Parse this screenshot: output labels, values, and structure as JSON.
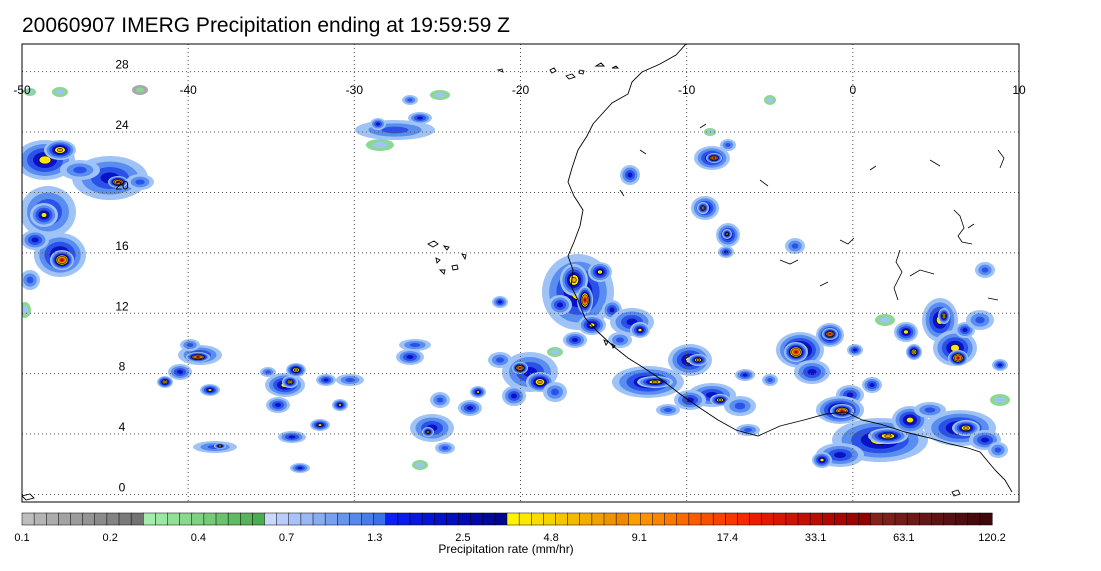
{
  "title": "20060907 IMERG Precipitation ending at 19:59:59 Z",
  "map": {
    "lon_ticks": [
      "-50",
      "-40",
      "-30",
      "-20",
      "-10",
      "0",
      "10"
    ],
    "lat_ticks": [
      "28",
      "24",
      "20",
      "16",
      "12",
      "8",
      "4",
      "0"
    ],
    "lon_range": [
      -50,
      10
    ],
    "lat_range": [
      -0.5,
      29
    ],
    "grid": "dotted",
    "coastline_color": "#000000"
  },
  "colorbar": {
    "title": "Precipitation rate (mm/hr)",
    "tick_labels": [
      "0.1",
      "0.2",
      "0.4",
      "0.7",
      "1.3",
      "2.5",
      "4.8",
      "9.1",
      "17.4",
      "33.1",
      "63.1",
      "120.2"
    ],
    "colors": [
      "#bdbdbd",
      "#b4b4b4",
      "#acacac",
      "#a3a3a3",
      "#9b9b9b",
      "#939393",
      "#8b8b8b",
      "#838383",
      "#7a7a7a",
      "#727272",
      "#a6ecad",
      "#9ce6a3",
      "#92df98",
      "#88d88e",
      "#7ed184",
      "#74ca79",
      "#6ac26f",
      "#60bb65",
      "#56b45a",
      "#4cad50",
      "#c9d8fb",
      "#b9cdfa",
      "#a9c2f8",
      "#99b6f5",
      "#89abf2",
      "#799ff0",
      "#6894ed",
      "#5888ea",
      "#487de7",
      "#3872e4",
      "#0d1ef2",
      "#0a1ae8",
      "#0817dd",
      "#0614d2",
      "#0411c7",
      "#030ebc",
      "#020bb1",
      "#0109a6",
      "#00079b",
      "#000590",
      "#fff400",
      "#fde800",
      "#fbdc00",
      "#f9d000",
      "#f7c400",
      "#f5b800",
      "#f3ac00",
      "#f1a000",
      "#ef9400",
      "#ed8800",
      "#fd9e00",
      "#fc9200",
      "#fb8500",
      "#fa7800",
      "#f96b00",
      "#f85e00",
      "#f75100",
      "#f64400",
      "#f53700",
      "#f42a00",
      "#ea1d00",
      "#e01a00",
      "#d61700",
      "#cc1400",
      "#c21100",
      "#b80e00",
      "#ae0b00",
      "#a40800",
      "#9a0500",
      "#900200",
      "#86221c",
      "#7e1f1a",
      "#761c18",
      "#6e1916",
      "#661614",
      "#5e1312",
      "#561010",
      "#4e0d0e",
      "#460a0c",
      "#3e070a"
    ]
  }
}
